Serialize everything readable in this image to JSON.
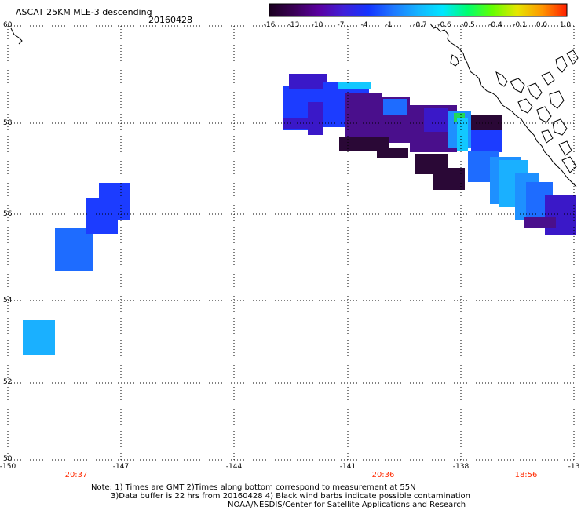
{
  "header": {
    "title": "ASCAT 25KM MLE-3 descending",
    "date": "20160428"
  },
  "colorbar": {
    "labels": [
      "-16",
      "-13",
      "-10",
      "-7",
      "-4",
      "-1",
      "-0.7",
      "-0.6",
      "-0.5",
      "-0.4",
      "-0.1",
      "0.0",
      "1.0"
    ],
    "colors": [
      "#1a0020",
      "#3a0055",
      "#5a00a0",
      "#3f1fd8",
      "#1434ff",
      "#1e78ff",
      "#14b4ff",
      "#00e6ff",
      "#00ff6e",
      "#64ff00",
      "#e6e600",
      "#ff9600",
      "#ff1e00"
    ]
  },
  "axes": {
    "lat_labels": [
      "60",
      "58",
      "56",
      "54",
      "52",
      "50"
    ],
    "lon_labels": [
      "-150",
      "-147",
      "-144",
      "-141",
      "-138",
      "-13"
    ]
  },
  "times": [
    "20:37",
    "20:36",
    "18:56"
  ],
  "notes": {
    "line1": "Note: 1) Times are GMT 2)Times along bottom correspond to measurement at 55N",
    "line2": "3)Data buffer is 22 hrs from 20160428 4) Black wind barbs indicate possible contamination",
    "line3": "NOAA/NESDIS/Center for Satellite Applications and Research"
  }
}
